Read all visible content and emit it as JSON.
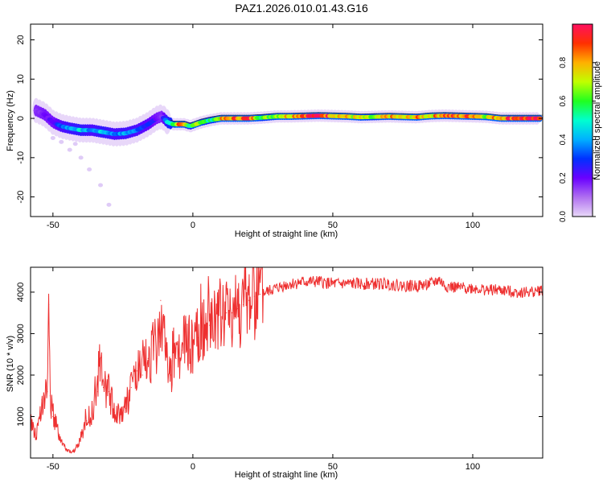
{
  "figure": {
    "title": "PAZ1.2026.010.01.43.G16",
    "colors": {
      "background": "#ffffff",
      "axes": "#000000",
      "snr_line": "#ee3030"
    }
  },
  "chart_data": [
    {
      "type": "heatmap",
      "name": "spectrogram",
      "title": "",
      "xlabel": "Height of straight line (km)",
      "ylabel": "Frequency (Hz)",
      "xlim": [
        -58,
        125
      ],
      "ylim": [
        -25,
        24
      ],
      "xticks": [
        -50,
        0,
        50,
        100
      ],
      "yticks": [
        -20,
        -10,
        0,
        10,
        20
      ],
      "colorbar": {
        "label": "Normalized spectral amplitude",
        "range": [
          0,
          1
        ],
        "ticks": [
          "0.0",
          "0.2",
          "0.4",
          "0.6",
          "0.8"
        ],
        "tick_values": [
          0.0,
          0.2,
          0.4,
          0.6,
          0.8
        ],
        "colormap": [
          "#e8d8f8",
          "#b070f0",
          "#6a00ff",
          "#0030ff",
          "#00b0ff",
          "#00ffd0",
          "#20ff20",
          "#c0ff00",
          "#ffb000",
          "#ff3000",
          "#ff1060"
        ]
      },
      "ridge": {
        "description_points_height_km": [
          -56,
          -53,
          -50,
          -47,
          -44,
          -40,
          -36,
          -32,
          -28,
          -24,
          -20,
          -16,
          -13,
          -11,
          -9,
          -7,
          -5,
          -3,
          -1,
          1,
          3,
          6,
          10,
          15,
          20,
          25,
          30,
          35,
          40,
          45,
          50,
          55,
          60,
          65,
          70,
          75,
          80,
          85,
          90,
          95,
          100,
          105,
          110,
          115,
          120,
          124
        ],
        "frequency_hz": [
          2,
          1,
          -1,
          -2,
          -2.5,
          -3,
          -3,
          -3.5,
          -4,
          -3.8,
          -3,
          -1.5,
          0,
          0.5,
          -1,
          -1.5,
          -1.5,
          -1.5,
          -2,
          -1.5,
          -1,
          -0.5,
          0,
          0,
          0,
          0.2,
          0.5,
          0.5,
          0.6,
          0.7,
          0.6,
          0.5,
          0.3,
          0.4,
          0.5,
          0.4,
          0.3,
          0.6,
          0.7,
          0.6,
          0.5,
          0.4,
          0,
          0,
          0,
          0
        ],
        "amplitude": [
          0.15,
          0.2,
          0.2,
          0.35,
          0.4,
          0.45,
          0.35,
          0.45,
          0.35,
          0.4,
          0.35,
          0.3,
          0.2,
          0.15,
          0.5,
          0.55,
          0.85,
          0.7,
          0.45,
          0.8,
          0.65,
          0.5,
          0.75,
          0.85,
          0.9,
          0.6,
          0.7,
          0.8,
          0.95,
          0.98,
          0.85,
          0.75,
          0.7,
          0.6,
          0.8,
          0.7,
          0.8,
          0.75,
          0.9,
          0.8,
          0.9,
          0.7,
          0.85,
          0.95,
          0.9,
          0.9
        ]
      }
    },
    {
      "type": "line",
      "name": "snr",
      "title": "",
      "xlabel": "Height of straight line (km)",
      "ylabel": "SNR (10 * v/v)",
      "xlim": [
        -58,
        125
      ],
      "ylim": [
        0,
        4600
      ],
      "xticks": [
        -50,
        0,
        50,
        100
      ],
      "yticks": [
        1000,
        2000,
        3000,
        4000
      ],
      "series": [
        {
          "name": "SNR",
          "x": [
            -58,
            -56,
            -54,
            -52,
            -51.5,
            -51,
            -50,
            -48,
            -46,
            -44,
            -42,
            -40,
            -38,
            -36,
            -34,
            -33.5,
            -32,
            -30,
            -28,
            -26,
            -24,
            -22,
            -20,
            -18,
            -16,
            -14,
            -12,
            -11.5,
            -10,
            -8,
            -6,
            -4,
            -2,
            0,
            2,
            4,
            6,
            8,
            10,
            12,
            14,
            16,
            18,
            20,
            22,
            24,
            26,
            28,
            30,
            32,
            35,
            40,
            45,
            50,
            55,
            60,
            65,
            70,
            75,
            80,
            85,
            88,
            90,
            95,
            100,
            105,
            110,
            115,
            120,
            125
          ],
          "y": [
            900,
            500,
            1400,
            1600,
            3700,
            1500,
            1000,
            600,
            300,
            150,
            200,
            500,
            900,
            1100,
            1600,
            2500,
            1700,
            1600,
            1100,
            1100,
            1200,
            1700,
            2100,
            2000,
            2400,
            2600,
            2800,
            3800,
            2700,
            2000,
            2400,
            2600,
            2800,
            2700,
            2900,
            3100,
            3200,
            3300,
            3400,
            3500,
            3500,
            3600,
            3700,
            3800,
            3900,
            3950,
            4000,
            4050,
            4100,
            4150,
            4200,
            4250,
            4250,
            4200,
            4200,
            4200,
            4200,
            4200,
            4150,
            4150,
            4200,
            4300,
            4150,
            4100,
            4100,
            4050,
            4050,
            4000,
            4000,
            4050
          ]
        }
      ]
    }
  ]
}
